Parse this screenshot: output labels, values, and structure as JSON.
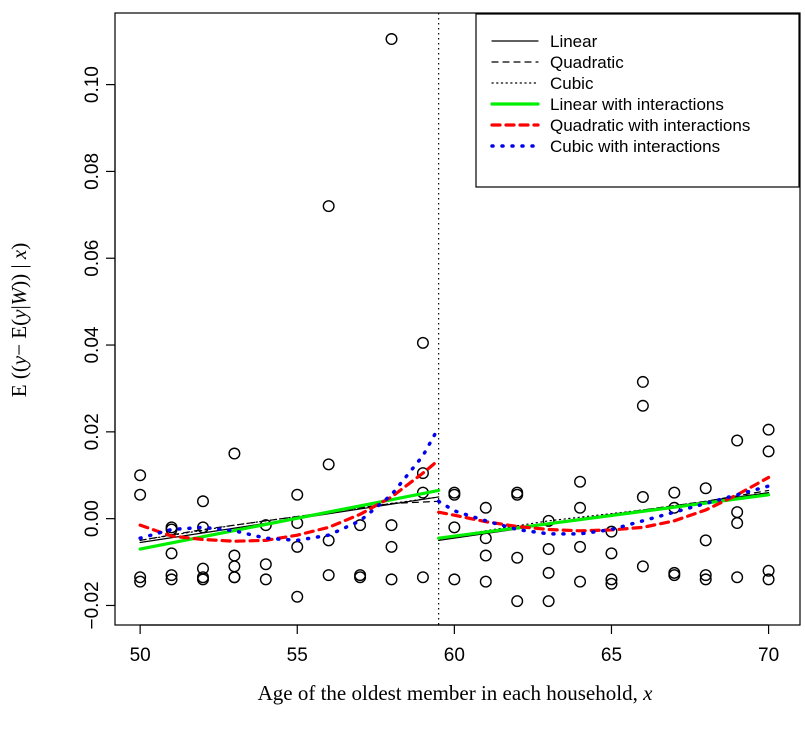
{
  "chart_data": {
    "type": "scatter",
    "title": "",
    "xlabel_parts": [
      "Age of the oldest member in each household, ",
      "x"
    ],
    "ylabel_parts": [
      "E ((",
      "y",
      "− E(",
      "y",
      "|",
      "W",
      ")) | ",
      "x",
      ")"
    ],
    "xlim": [
      49.2,
      71
    ],
    "ylim": [
      -0.0245,
      0.1165
    ],
    "x_ticks": [
      50,
      55,
      60,
      65,
      70
    ],
    "y_ticks": [
      -0.02,
      0.0,
      0.02,
      0.04,
      0.06,
      0.08,
      0.1
    ],
    "y_tick_labels": [
      "−0.02",
      "0.00",
      "0.02",
      "0.04",
      "0.06",
      "0.08",
      "0.10"
    ],
    "cutoff": 59.5,
    "grid": false,
    "legend_position": "top-right",
    "points": [
      [
        50,
        0.01
      ],
      [
        50,
        0.0055
      ],
      [
        50,
        -0.0135
      ],
      [
        50,
        -0.0145
      ],
      [
        51,
        -0.002
      ],
      [
        51,
        -0.0025
      ],
      [
        51,
        -0.008
      ],
      [
        51,
        -0.013
      ],
      [
        51,
        -0.014
      ],
      [
        52,
        0.004
      ],
      [
        52,
        -0.002
      ],
      [
        52,
        -0.0115
      ],
      [
        52,
        -0.0135
      ],
      [
        52,
        -0.014
      ],
      [
        53,
        0.015
      ],
      [
        53,
        -0.0085
      ],
      [
        53,
        -0.011
      ],
      [
        53,
        -0.0135
      ],
      [
        53,
        -0.0135
      ],
      [
        54,
        -0.0015
      ],
      [
        54,
        -0.0105
      ],
      [
        54,
        -0.014
      ],
      [
        55,
        0.0055
      ],
      [
        55,
        -0.001
      ],
      [
        55,
        -0.0065
      ],
      [
        55,
        -0.018
      ],
      [
        56,
        0.072
      ],
      [
        56,
        0.0125
      ],
      [
        56,
        -0.005
      ],
      [
        56,
        -0.013
      ],
      [
        57,
        -0.0015
      ],
      [
        57,
        -0.013
      ],
      [
        57,
        -0.0135
      ],
      [
        58,
        0.1105
      ],
      [
        58,
        -0.0015
      ],
      [
        58,
        -0.0065
      ],
      [
        58,
        -0.014
      ],
      [
        59,
        0.0405
      ],
      [
        59,
        0.0105
      ],
      [
        59,
        0.006
      ],
      [
        59,
        -0.0135
      ],
      [
        60,
        0.006
      ],
      [
        60,
        0.0055
      ],
      [
        60,
        -0.002
      ],
      [
        60,
        -0.014
      ],
      [
        61,
        0.0025
      ],
      [
        61,
        -0.0045
      ],
      [
        61,
        -0.0085
      ],
      [
        61,
        -0.0145
      ],
      [
        62,
        0.006
      ],
      [
        62,
        0.0055
      ],
      [
        62,
        -0.009
      ],
      [
        62,
        -0.019
      ],
      [
        63,
        -0.0005
      ],
      [
        63,
        -0.007
      ],
      [
        63,
        -0.0125
      ],
      [
        63,
        -0.019
      ],
      [
        64,
        0.0085
      ],
      [
        64,
        0.0025
      ],
      [
        64,
        -0.0065
      ],
      [
        64,
        -0.0145
      ],
      [
        65,
        -0.003
      ],
      [
        65,
        -0.008
      ],
      [
        65,
        -0.014
      ],
      [
        65,
        -0.015
      ],
      [
        66,
        0.0315
      ],
      [
        66,
        0.026
      ],
      [
        66,
        0.005
      ],
      [
        66,
        -0.011
      ],
      [
        67,
        0.006
      ],
      [
        67,
        0.0025
      ],
      [
        67,
        -0.0125
      ],
      [
        67,
        -0.013
      ],
      [
        68,
        0.007
      ],
      [
        68,
        -0.005
      ],
      [
        68,
        -0.013
      ],
      [
        68,
        -0.014
      ],
      [
        69,
        0.018
      ],
      [
        69,
        0.0015
      ],
      [
        69,
        -0.001
      ],
      [
        69,
        -0.0135
      ],
      [
        70,
        0.0205
      ],
      [
        70,
        0.0155
      ],
      [
        70,
        -0.012
      ],
      [
        70,
        -0.014
      ]
    ],
    "series": [
      {
        "name": "Linear",
        "color": "#000000",
        "dash": "solid",
        "width": 1.2,
        "left": [
          [
            50,
            -0.0055
          ],
          [
            59.5,
            0.005
          ]
        ],
        "right": [
          [
            59.5,
            -0.005
          ],
          [
            70,
            0.006
          ]
        ]
      },
      {
        "name": "Quadratic",
        "color": "#000000",
        "dash": "dashed",
        "width": 1.2,
        "left": [
          [
            50,
            -0.005
          ],
          [
            52,
            -0.0025
          ],
          [
            54,
            -0.0005
          ],
          [
            56,
            0.0015
          ],
          [
            58,
            0.0035
          ],
          [
            59.5,
            0.004
          ]
        ],
        "right": [
          [
            59.5,
            -0.0045
          ],
          [
            62,
            -0.002
          ],
          [
            65,
            0.001
          ],
          [
            68,
            0.004
          ],
          [
            70,
            0.0065
          ]
        ]
      },
      {
        "name": "Cubic",
        "color": "#000000",
        "dash": "dotted",
        "width": 1.2,
        "left": [
          [
            50,
            -0.005
          ],
          [
            53,
            -0.0015
          ],
          [
            56,
            0.0015
          ],
          [
            59.5,
            0.005
          ]
        ],
        "right": [
          [
            59.5,
            -0.0045
          ],
          [
            63,
            -0.0005
          ],
          [
            66,
            0.002
          ],
          [
            70,
            0.006
          ]
        ]
      },
      {
        "name": "Linear with interactions",
        "color": "#00ee00",
        "dash": "solid",
        "width": 3.2,
        "left": [
          [
            50,
            -0.007
          ],
          [
            59.5,
            0.0065
          ]
        ],
        "right": [
          [
            59.5,
            -0.0045
          ],
          [
            70,
            0.0055
          ]
        ]
      },
      {
        "name": "Quadratic with interactions",
        "color": "#ff0000",
        "dash": "dashed",
        "width": 3.2,
        "left": [
          [
            50,
            -0.0015
          ],
          [
            51,
            -0.004
          ],
          [
            52,
            -0.0048
          ],
          [
            53,
            -0.0052
          ],
          [
            54,
            -0.005
          ],
          [
            55,
            -0.0038
          ],
          [
            56,
            -0.002
          ],
          [
            57,
            0.001
          ],
          [
            58,
            0.005
          ],
          [
            59,
            0.0105
          ],
          [
            59.5,
            0.0135
          ]
        ],
        "right": [
          [
            59.5,
            0.0015
          ],
          [
            60,
            0.0008
          ],
          [
            61,
            -0.0007
          ],
          [
            62,
            -0.0018
          ],
          [
            63,
            -0.0025
          ],
          [
            64,
            -0.0028
          ],
          [
            65,
            -0.0026
          ],
          [
            66,
            -0.002
          ],
          [
            67,
            -0.0005
          ],
          [
            68,
            0.002
          ],
          [
            69,
            0.0055
          ],
          [
            70,
            0.0095
          ]
        ]
      },
      {
        "name": "Cubic with interactions",
        "color": "#0000ee",
        "dash": "dotted",
        "width": 3.5,
        "left": [
          [
            50,
            -0.0045
          ],
          [
            51,
            -0.0025
          ],
          [
            52,
            -0.002
          ],
          [
            53,
            -0.0028
          ],
          [
            54,
            -0.0045
          ],
          [
            55,
            -0.005
          ],
          [
            56,
            -0.0038
          ],
          [
            57,
            -0.0005
          ],
          [
            58,
            0.0055
          ],
          [
            59,
            0.0145
          ],
          [
            59.5,
            0.021
          ]
        ],
        "right": [
          [
            59.5,
            0.004
          ],
          [
            60,
            0.0018
          ],
          [
            61,
            -0.0005
          ],
          [
            62,
            -0.0025
          ],
          [
            63,
            -0.0035
          ],
          [
            64,
            -0.0035
          ],
          [
            65,
            -0.0025
          ],
          [
            66,
            -0.0005
          ],
          [
            67,
            0.0015
          ],
          [
            68,
            0.0035
          ],
          [
            69,
            0.0055
          ],
          [
            70,
            0.0075
          ]
        ]
      }
    ]
  }
}
